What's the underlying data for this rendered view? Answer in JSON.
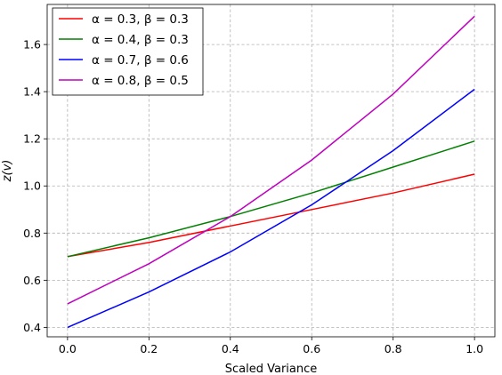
{
  "chart_data": {
    "type": "line",
    "xlabel": "Scaled Variance",
    "ylabel": "z(v)",
    "x": [
      0.0,
      0.2,
      0.4,
      0.6,
      0.8,
      1.0
    ],
    "xlim": [
      -0.05,
      1.05
    ],
    "ylim": [
      0.36,
      1.77
    ],
    "xticks": [
      "0.0",
      "0.2",
      "0.4",
      "0.6",
      "0.8",
      "1.0"
    ],
    "yticks": [
      "0.4",
      "0.6",
      "0.8",
      "1.0",
      "1.2",
      "1.4",
      "1.6"
    ],
    "grid": true,
    "legend_position": "top-left",
    "series": [
      {
        "name": "α = 0.3, β = 0.3",
        "color": "#ff0000",
        "values": [
          0.7,
          0.76,
          0.83,
          0.9,
          0.97,
          1.05
        ]
      },
      {
        "name": "α = 0.4, β = 0.3",
        "color": "#008000",
        "values": [
          0.7,
          0.78,
          0.87,
          0.97,
          1.08,
          1.19
        ]
      },
      {
        "name": "α = 0.7, β = 0.6",
        "color": "#0000ff",
        "values": [
          0.4,
          0.55,
          0.72,
          0.92,
          1.15,
          1.41
        ]
      },
      {
        "name": "α = 0.8, β = 0.5",
        "color": "#bf00bf",
        "values": [
          0.5,
          0.67,
          0.87,
          1.11,
          1.39,
          1.72
        ]
      }
    ]
  }
}
